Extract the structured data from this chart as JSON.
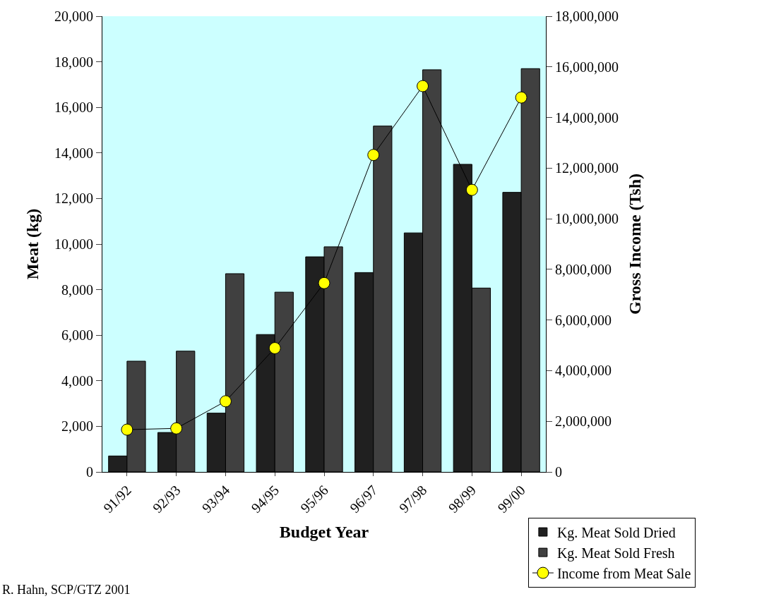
{
  "chart_data": {
    "type": "bar",
    "xlabel": "Budget Year",
    "ylabel": "Meat (kg)",
    "y2label": "Gross Income (Tsh)",
    "categories": [
      "91/92",
      "92/93",
      "93/94",
      "94/95",
      "95/96",
      "96/97",
      "97/98",
      "98/99",
      "99/00"
    ],
    "series": [
      {
        "name": "Kg. Meat Sold Dried",
        "color": "#202020",
        "values": [
          700,
          1730,
          2580,
          6030,
          9440,
          8750,
          10490,
          13500,
          12270
        ]
      },
      {
        "name": "Kg. Meat Sold Fresh",
        "color": "#404040",
        "values": [
          4860,
          5300,
          8700,
          7890,
          9880,
          15180,
          17650,
          8070,
          17700
        ]
      },
      {
        "name": "Income from Meat Sale",
        "type": "line",
        "axis": "y2",
        "color": "#ffff00",
        "marker": "circle",
        "values": [
          1670000,
          1720000,
          2790000,
          4890000,
          7460000,
          12520000,
          15240000,
          11140000,
          14790000
        ]
      }
    ],
    "ylim": [
      0,
      20000
    ],
    "yticks": [
      {
        "value": 0,
        "label": "0"
      },
      {
        "value": 2000,
        "label": "2,000"
      },
      {
        "value": 4000,
        "label": "4,000"
      },
      {
        "value": 6000,
        "label": "6,000"
      },
      {
        "value": 8000,
        "label": "8,000"
      },
      {
        "value": 10000,
        "label": "10,000"
      },
      {
        "value": 12000,
        "label": "12,000"
      },
      {
        "value": 14000,
        "label": "14,000"
      },
      {
        "value": 16000,
        "label": "16,000"
      },
      {
        "value": 18000,
        "label": "18,000"
      },
      {
        "value": 20000,
        "label": "20,000"
      }
    ],
    "y2lim": [
      0,
      18000000
    ],
    "y2ticks": [
      {
        "value": 0,
        "label": "0"
      },
      {
        "value": 2000000,
        "label": "2,000,000"
      },
      {
        "value": 4000000,
        "label": "4,000,000"
      },
      {
        "value": 6000000,
        "label": "6,000,000"
      },
      {
        "value": 8000000,
        "label": "8,000,000"
      },
      {
        "value": 10000000,
        "label": "10,000,000"
      },
      {
        "value": 12000000,
        "label": "12,000,000"
      },
      {
        "value": 14000000,
        "label": "14,000,000"
      },
      {
        "value": 16000000,
        "label": "16,000,000"
      },
      {
        "value": 18000000,
        "label": "18,000,000"
      }
    ],
    "grid": false,
    "legend": "bottom right",
    "annotations": [
      "R. Hahn, SCP/GTZ 2001"
    ]
  }
}
